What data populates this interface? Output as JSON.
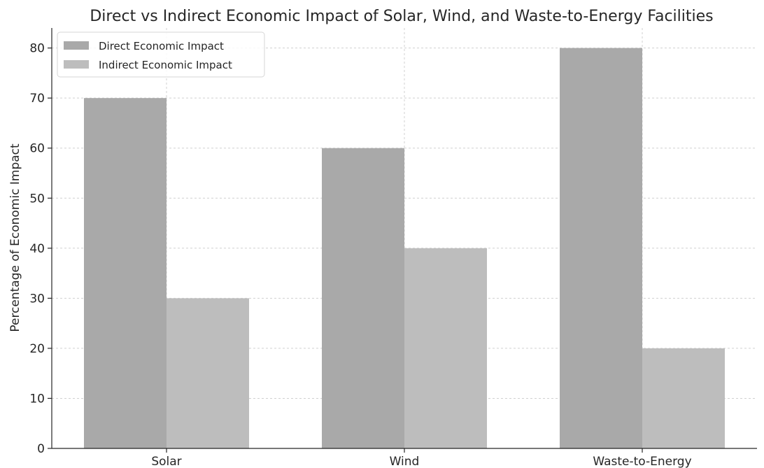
{
  "chart_data": {
    "type": "bar",
    "title": "Direct vs Indirect Economic Impact of Solar, Wind, and Waste-to-Energy Facilities",
    "xlabel": "",
    "ylabel": "Percentage of Economic Impact",
    "categories": [
      "Solar",
      "Wind",
      "Waste-to-Energy"
    ],
    "series": [
      {
        "name": "Direct Economic Impact",
        "values": [
          70,
          60,
          80
        ],
        "color": "#a9a9a9"
      },
      {
        "name": "Indirect Economic Impact",
        "values": [
          30,
          40,
          20
        ],
        "color": "#bdbdbd"
      }
    ],
    "ylim": [
      0,
      84
    ],
    "yticks": [
      0,
      10,
      20,
      30,
      40,
      50,
      60,
      70,
      80
    ],
    "grid": true,
    "legend_position": "top-left"
  }
}
